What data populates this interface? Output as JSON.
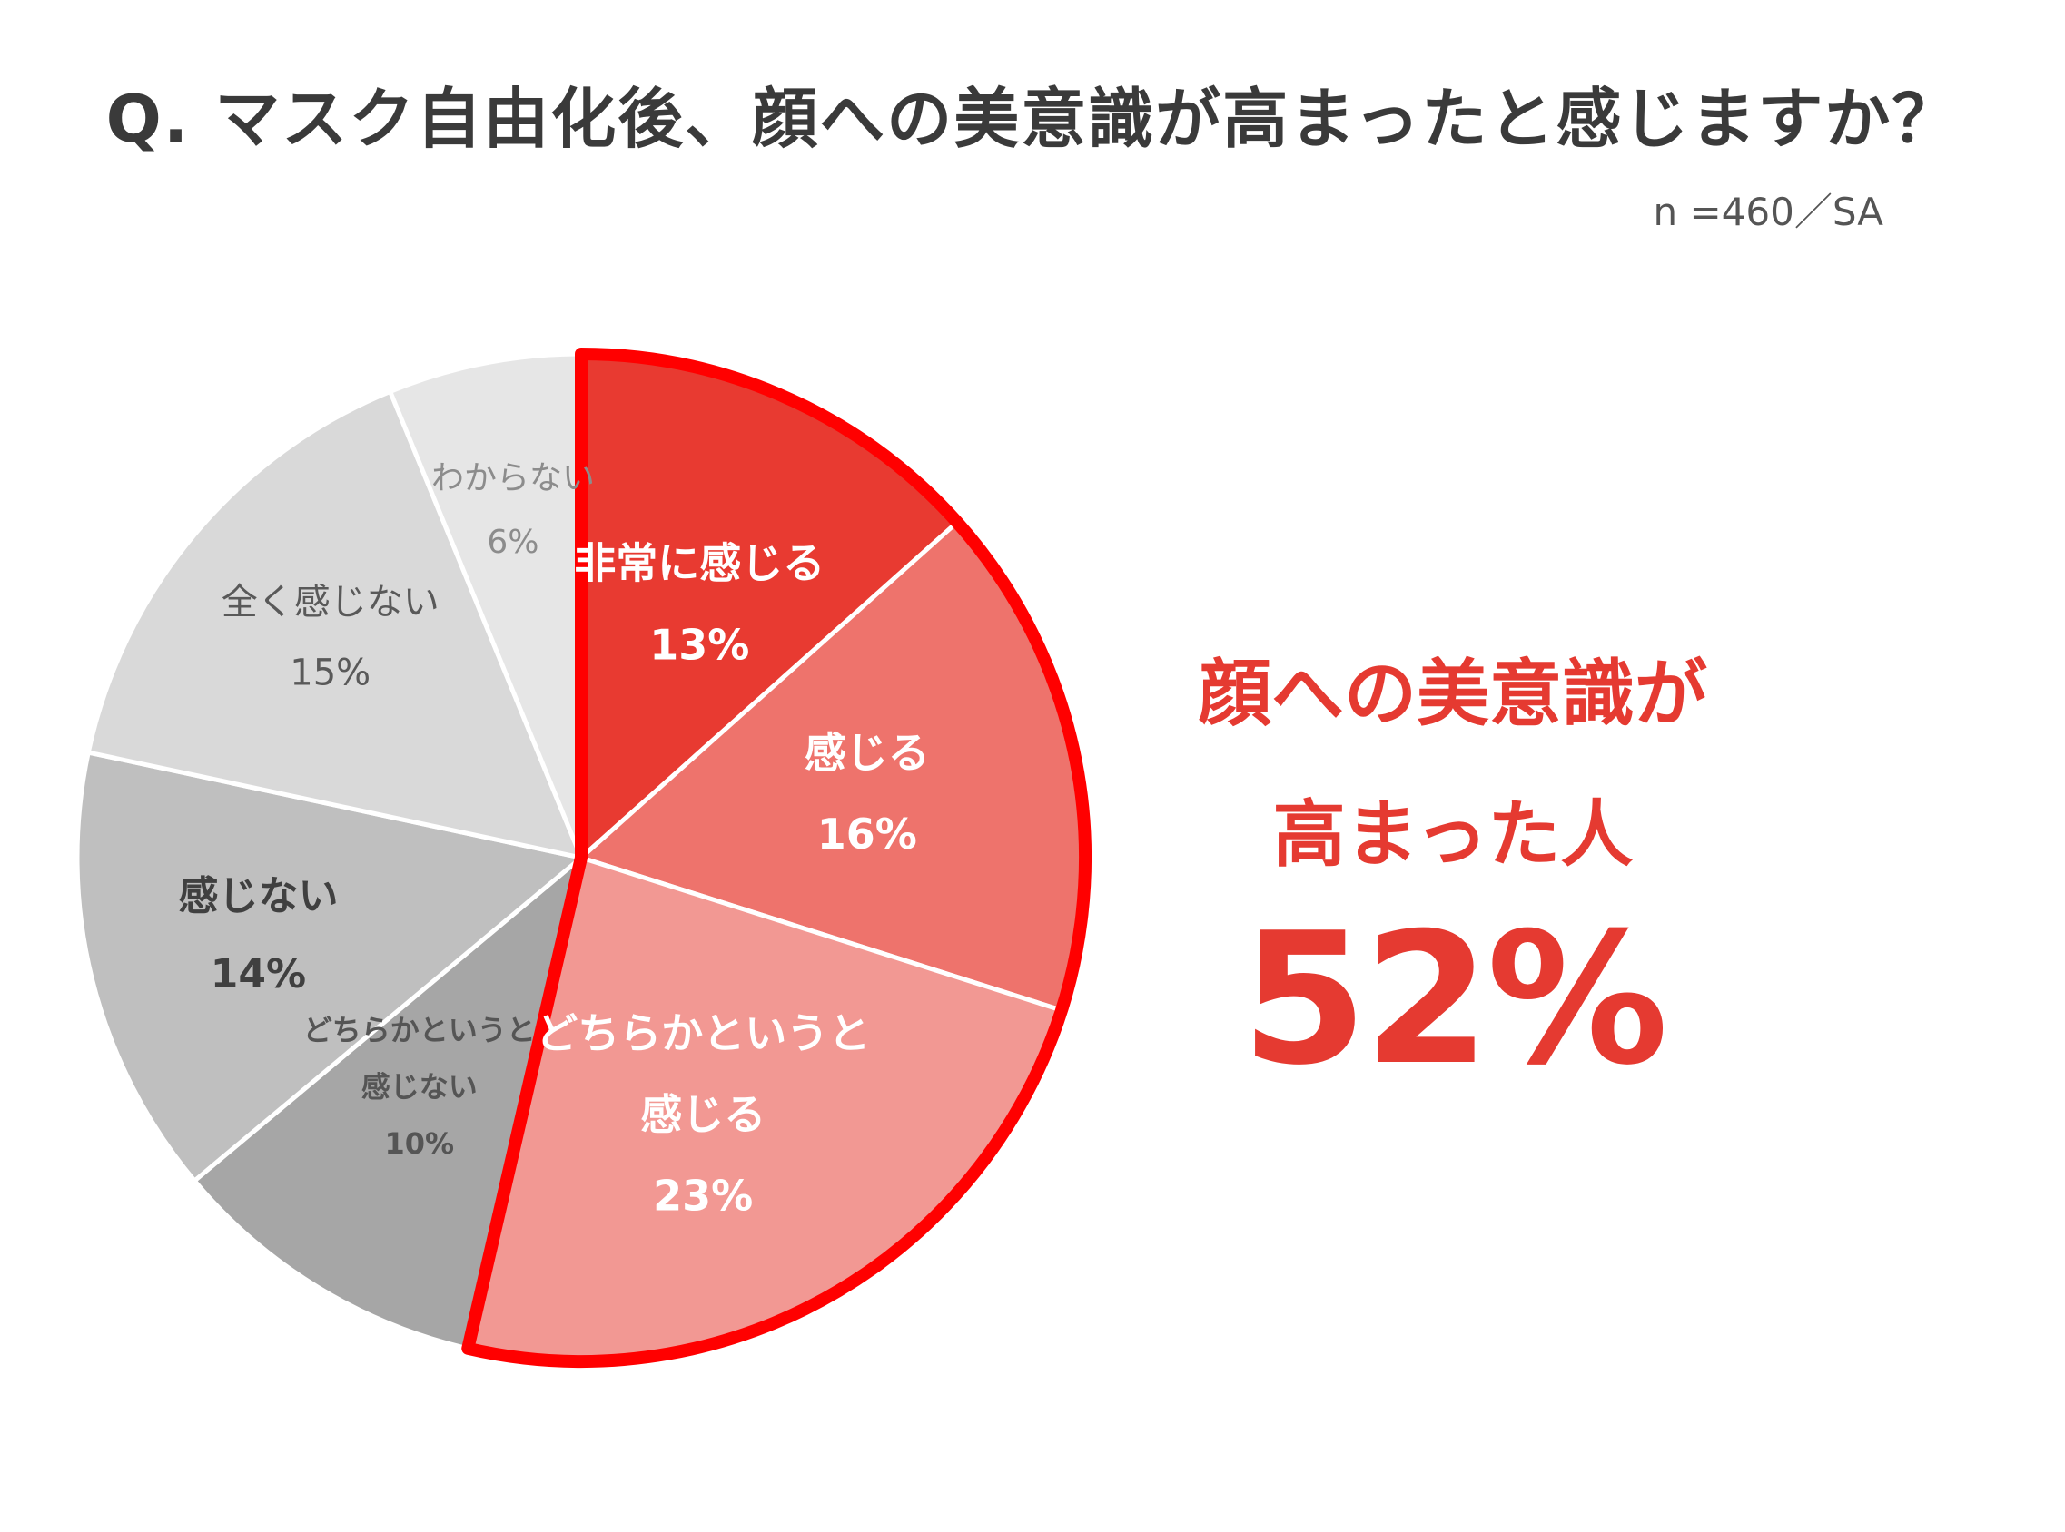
{
  "title": "Q. マスク自由化後、顔への美意識が高まったと感じますか？",
  "subtitle": "n =460／SA",
  "chart_data": {
    "type": "pie",
    "start": "12 o'clock",
    "direction": "clockwise",
    "slices": [
      {
        "lines": [
          "非常に感じる"
        ],
        "value": 13,
        "value_label": "13%",
        "color": "#e83a31",
        "text_color": "#ffffff",
        "bold": true,
        "highlighted": true
      },
      {
        "lines": [
          "感じる"
        ],
        "value": 16,
        "value_label": "16%",
        "color": "#ee736c",
        "text_color": "#ffffff",
        "bold": true,
        "highlighted": true
      },
      {
        "lines": [
          "どちらかというと",
          "感じる"
        ],
        "value": 23,
        "value_label": "23%",
        "color": "#f29893",
        "text_color": "#ffffff",
        "bold": true,
        "highlighted": true
      },
      {
        "lines": [
          "どちらかというと",
          "感じない"
        ],
        "value": 10,
        "value_label": "10%",
        "color": "#a6a6a6",
        "text_color": "#555555",
        "bold": true,
        "highlighted": false
      },
      {
        "lines": [
          "感じない"
        ],
        "value": 14,
        "value_label": "14%",
        "color": "#bfbfbf",
        "text_color": "#404040",
        "bold": true,
        "highlighted": false
      },
      {
        "lines": [
          "全く感じない"
        ],
        "value": 15,
        "value_label": "15%",
        "color": "#d9d9d9",
        "text_color": "#595959",
        "bold": false,
        "highlighted": false
      },
      {
        "lines": [
          "わからない"
        ],
        "value": 6,
        "value_label": "6%",
        "color": "#e6e6e6",
        "text_color": "#8c8c8c",
        "bold": false,
        "highlighted": false
      }
    ],
    "highlight_outline_color": "#ff0000"
  },
  "callout": {
    "line1": "顔への美意識が",
    "line2": "高まった人",
    "value": "52%",
    "color": "#e53a31"
  }
}
